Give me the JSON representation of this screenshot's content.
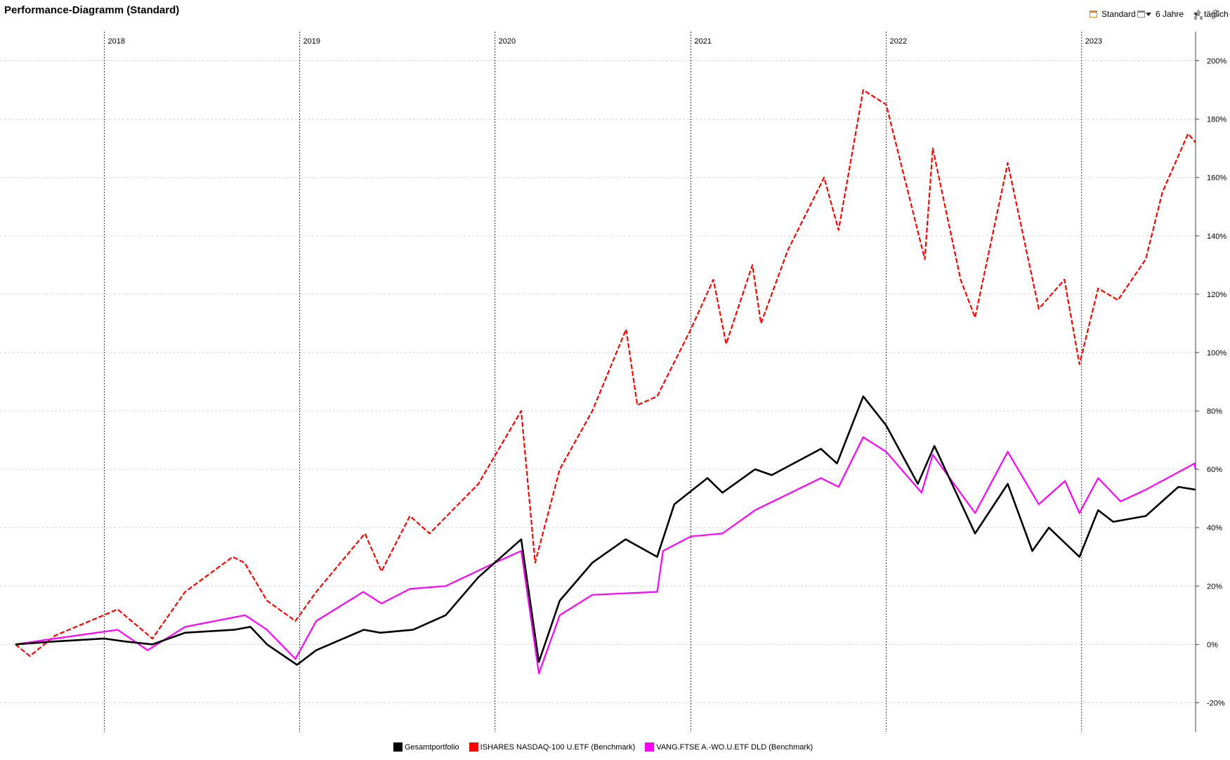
{
  "title": "Performance-Diagramm (Standard)",
  "toolbar": {
    "view_select": "Standard",
    "period_select": "6 Jahre",
    "interval_select": "täglich",
    "icons": [
      "calendar-icon",
      "window-icon",
      "export-icon",
      "gear-icon"
    ]
  },
  "chart_data": {
    "type": "line",
    "title": "",
    "xlabel": "",
    "ylabel": "",
    "y_unit": "%",
    "x_range": [
      "2017-07-19",
      "2023-08-02"
    ],
    "ylim": [
      -30,
      210
    ],
    "y_ticks": [
      -20,
      0,
      20,
      40,
      60,
      80,
      100,
      120,
      140,
      160,
      180,
      200
    ],
    "y_tick_labels": [
      "-20%",
      "0%",
      "20%",
      "40%",
      "60%",
      "80%",
      "100%",
      "120%",
      "140%",
      "160%",
      "180%",
      "200%"
    ],
    "x_ticks": [
      "2018-01-01",
      "2019-01-01",
      "2020-01-01",
      "2021-01-01",
      "2022-01-01",
      "2023-01-01"
    ],
    "x_tick_labels": [
      "2018",
      "2019",
      "2020",
      "2021",
      "2022",
      "2023"
    ],
    "grid": {
      "horizontal": "dashed-light",
      "vertical": "dashed-year"
    },
    "legend_position": "bottom-center",
    "series": [
      {
        "name": "Gesamtportfolio",
        "color": "#000000",
        "line_style": "solid",
        "points": [
          [
            "2017-07-19",
            0
          ],
          [
            "2017-10-01",
            1
          ],
          [
            "2018-01-01",
            2
          ],
          [
            "2018-02-08",
            1
          ],
          [
            "2018-04-01",
            0
          ],
          [
            "2018-06-01",
            4
          ],
          [
            "2018-09-01",
            5
          ],
          [
            "2018-10-01",
            6
          ],
          [
            "2018-11-01",
            0
          ],
          [
            "2018-12-27",
            -7
          ],
          [
            "2019-02-01",
            -2
          ],
          [
            "2019-05-01",
            5
          ],
          [
            "2019-06-01",
            4
          ],
          [
            "2019-08-01",
            5
          ],
          [
            "2019-10-01",
            10
          ],
          [
            "2019-12-01",
            23
          ],
          [
            "2020-02-19",
            36
          ],
          [
            "2020-03-23",
            -6
          ],
          [
            "2020-05-01",
            15
          ],
          [
            "2020-07-01",
            28
          ],
          [
            "2020-09-01",
            36
          ],
          [
            "2020-10-30",
            30
          ],
          [
            "2020-12-01",
            48
          ],
          [
            "2021-02-01",
            57
          ],
          [
            "2021-03-01",
            52
          ],
          [
            "2021-05-01",
            60
          ],
          [
            "2021-06-01",
            58
          ],
          [
            "2021-09-01",
            67
          ],
          [
            "2021-10-01",
            62
          ],
          [
            "2021-11-19",
            85
          ],
          [
            "2022-01-01",
            75
          ],
          [
            "2022-03-01",
            55
          ],
          [
            "2022-04-01",
            68
          ],
          [
            "2022-06-16",
            38
          ],
          [
            "2022-08-16",
            55
          ],
          [
            "2022-10-01",
            32
          ],
          [
            "2022-11-01",
            40
          ],
          [
            "2022-12-28",
            30
          ],
          [
            "2023-02-01",
            46
          ],
          [
            "2023-03-01",
            42
          ],
          [
            "2023-05-01",
            44
          ],
          [
            "2023-07-01",
            54
          ],
          [
            "2023-08-02",
            53
          ]
        ]
      },
      {
        "name": "ISHARES NASDAQ-100 U.ETF (Benchmark)",
        "color": "#ff0000",
        "line_style": "dashed",
        "points": [
          [
            "2017-07-19",
            0
          ],
          [
            "2017-08-15",
            -4
          ],
          [
            "2017-10-01",
            3
          ],
          [
            "2018-01-26",
            12
          ],
          [
            "2018-04-01",
            2
          ],
          [
            "2018-06-01",
            18
          ],
          [
            "2018-08-29",
            30
          ],
          [
            "2018-09-20",
            28
          ],
          [
            "2018-11-01",
            15
          ],
          [
            "2018-12-24",
            8
          ],
          [
            "2019-02-01",
            18
          ],
          [
            "2019-05-03",
            38
          ],
          [
            "2019-06-03",
            25
          ],
          [
            "2019-07-26",
            44
          ],
          [
            "2019-09-01",
            38
          ],
          [
            "2019-12-01",
            55
          ],
          [
            "2020-02-19",
            80
          ],
          [
            "2020-03-16",
            28
          ],
          [
            "2020-05-01",
            60
          ],
          [
            "2020-07-01",
            80
          ],
          [
            "2020-09-02",
            108
          ],
          [
            "2020-09-23",
            82
          ],
          [
            "2020-10-30",
            85
          ],
          [
            "2021-01-01",
            108
          ],
          [
            "2021-02-12",
            125
          ],
          [
            "2021-03-08",
            103
          ],
          [
            "2021-04-26",
            130
          ],
          [
            "2021-05-12",
            110
          ],
          [
            "2021-07-01",
            135
          ],
          [
            "2021-09-07",
            160
          ],
          [
            "2021-10-04",
            142
          ],
          [
            "2021-11-19",
            190
          ],
          [
            "2022-01-01",
            185
          ],
          [
            "2022-03-14",
            132
          ],
          [
            "2022-03-29",
            170
          ],
          [
            "2022-05-20",
            125
          ],
          [
            "2022-06-16",
            112
          ],
          [
            "2022-08-16",
            165
          ],
          [
            "2022-10-13",
            115
          ],
          [
            "2022-11-30",
            125
          ],
          [
            "2022-12-28",
            96
          ],
          [
            "2023-02-01",
            122
          ],
          [
            "2023-03-10",
            118
          ],
          [
            "2023-05-01",
            132
          ],
          [
            "2023-06-01",
            155
          ],
          [
            "2023-07-19",
            175
          ],
          [
            "2023-08-02",
            172
          ]
        ]
      },
      {
        "name": "VANG.FTSE A.-WO.U.ETF DLD (Benchmark)",
        "color": "#ff00ff",
        "line_style": "solid",
        "points": [
          [
            "2017-07-19",
            0
          ],
          [
            "2017-10-01",
            2
          ],
          [
            "2018-01-26",
            5
          ],
          [
            "2018-03-23",
            -2
          ],
          [
            "2018-06-01",
            6
          ],
          [
            "2018-09-21",
            10
          ],
          [
            "2018-11-01",
            5
          ],
          [
            "2018-12-24",
            -5
          ],
          [
            "2019-02-01",
            8
          ],
          [
            "2019-04-30",
            18
          ],
          [
            "2019-06-03",
            14
          ],
          [
            "2019-07-26",
            19
          ],
          [
            "2019-10-01",
            20
          ],
          [
            "2020-01-01",
            28
          ],
          [
            "2020-02-19",
            32
          ],
          [
            "2020-03-23",
            -10
          ],
          [
            "2020-05-01",
            10
          ],
          [
            "2020-07-01",
            17
          ],
          [
            "2020-10-30",
            18
          ],
          [
            "2020-11-10",
            32
          ],
          [
            "2021-01-01",
            37
          ],
          [
            "2021-03-01",
            38
          ],
          [
            "2021-05-01",
            46
          ],
          [
            "2021-09-01",
            57
          ],
          [
            "2021-10-04",
            54
          ],
          [
            "2021-11-19",
            71
          ],
          [
            "2022-01-01",
            66
          ],
          [
            "2022-03-08",
            52
          ],
          [
            "2022-03-29",
            65
          ],
          [
            "2022-06-16",
            45
          ],
          [
            "2022-08-16",
            66
          ],
          [
            "2022-10-13",
            48
          ],
          [
            "2022-12-01",
            56
          ],
          [
            "2022-12-28",
            45
          ],
          [
            "2023-02-01",
            57
          ],
          [
            "2023-03-15",
            49
          ],
          [
            "2023-05-01",
            53
          ],
          [
            "2023-07-31",
            62
          ],
          [
            "2023-08-02",
            60
          ]
        ]
      }
    ]
  }
}
